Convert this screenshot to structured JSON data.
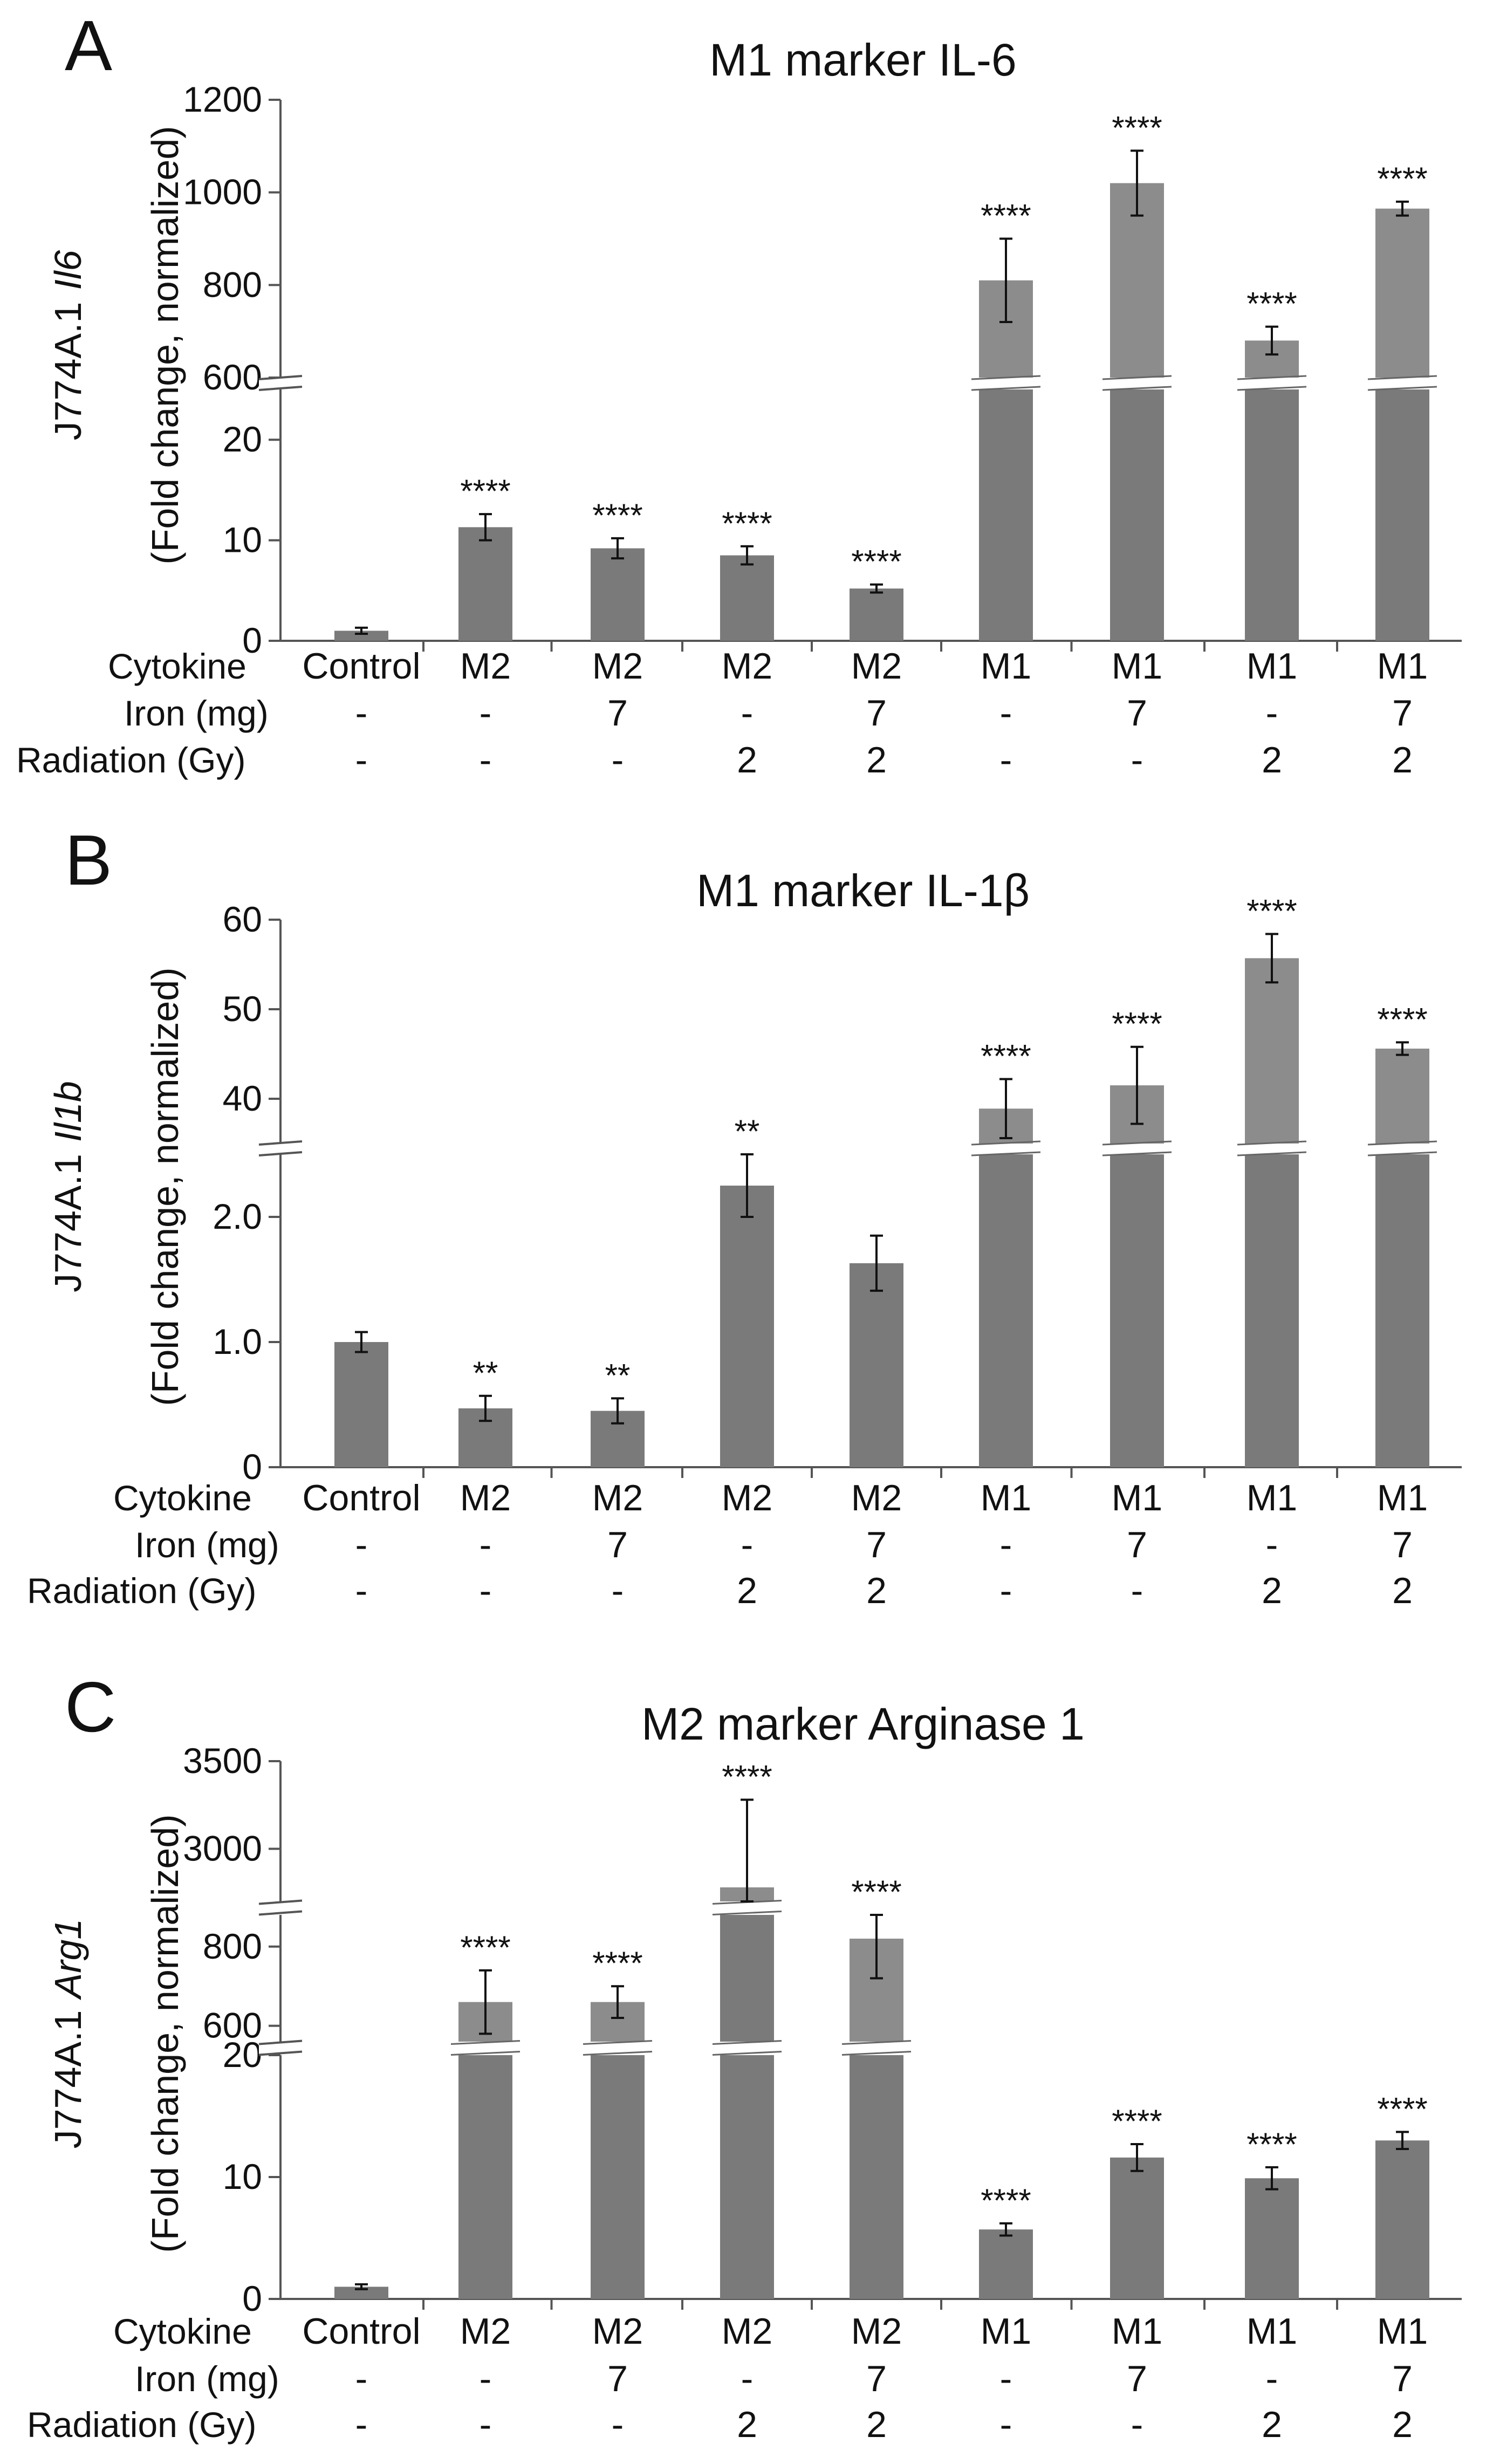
{
  "chart_data": [
    {
      "type": "bar",
      "panel": "A",
      "title": "M1 marker IL-6",
      "ylabel_main": "J774A.1",
      "ylabel_gene": "Il6",
      "ylabel_sub": "(Fold change, normalized)",
      "categories": [
        "Control",
        "M2",
        "M2",
        "M2",
        "M2",
        "M1",
        "M1",
        "M1",
        "M1"
      ],
      "values": [
        1.0,
        11.3,
        9.2,
        8.5,
        5.2,
        810,
        1020,
        680,
        965
      ],
      "errors": [
        0.3,
        1.3,
        1.0,
        0.9,
        0.4,
        90,
        70,
        30,
        15
      ],
      "significance": [
        "",
        "****",
        "****",
        "****",
        "****",
        "****",
        "****",
        "****",
        "****"
      ],
      "segments": [
        {
          "range": [
            0,
            25
          ],
          "ticks": [
            0,
            10,
            20
          ]
        },
        {
          "range": [
            600,
            1200
          ],
          "ticks": [
            600,
            800,
            1000,
            1200
          ]
        }
      ],
      "rows": [
        {
          "label": "Cytokine",
          "values": [
            "Control",
            "M2",
            "M2",
            "M2",
            "M2",
            "M1",
            "M1",
            "M1",
            "M1"
          ]
        },
        {
          "label": "Iron (mg)",
          "values": [
            "-",
            "-",
            "7",
            "-",
            "7",
            "-",
            "7",
            "-",
            "7"
          ]
        },
        {
          "label": "Radiation (Gy)",
          "values": [
            "-",
            "-",
            "-",
            "2",
            "2",
            "-",
            "-",
            "2",
            "2"
          ]
        }
      ]
    },
    {
      "type": "bar",
      "panel": "B",
      "title": "M1 marker IL-1β",
      "ylabel_main": "J774A.1",
      "ylabel_gene": "Il1b",
      "ylabel_sub": "(Fold change, normalized)",
      "categories": [
        "Control",
        "M2",
        "M2",
        "M2",
        "M2",
        "M1",
        "M1",
        "M1",
        "M1"
      ],
      "values": [
        1.0,
        0.47,
        0.45,
        2.25,
        1.63,
        38.9,
        41.5,
        55.7,
        45.6
      ],
      "errors": [
        0.08,
        0.1,
        0.1,
        0.25,
        0.22,
        3.3,
        4.3,
        2.7,
        0.7
      ],
      "significance": [
        "",
        "**",
        "**",
        "**",
        "",
        "****",
        "****",
        "****",
        "****"
      ],
      "segments": [
        {
          "range": [
            0,
            2.5
          ],
          "ticks": [
            0,
            1.0,
            2.0
          ],
          "tick_labels": [
            "0",
            "1.0",
            "2.0"
          ]
        },
        {
          "range": [
            35,
            60
          ],
          "ticks": [
            40,
            50,
            60
          ]
        }
      ],
      "rows": [
        {
          "label": "Cytokine",
          "values": [
            "Control",
            "M2",
            "M2",
            "M2",
            "M2",
            "M1",
            "M1",
            "M1",
            "M1"
          ]
        },
        {
          "label": "Iron (mg)",
          "values": [
            "-",
            "-",
            "7",
            "-",
            "7",
            "-",
            "7",
            "-",
            "7"
          ]
        },
        {
          "label": "Radiation (Gy)",
          "values": [
            "-",
            "-",
            "-",
            "2",
            "2",
            "-",
            "-",
            "2",
            "2"
          ]
        }
      ]
    },
    {
      "type": "bar",
      "panel": "C",
      "title": "M2 marker Arginase 1",
      "ylabel_main": "J774A.1",
      "ylabel_gene": "Arg1",
      "ylabel_sub": "(Fold change, normalized)",
      "categories": [
        "Control",
        "M2",
        "M2",
        "M2",
        "M2",
        "M1",
        "M1",
        "M1",
        "M1"
      ],
      "values": [
        1.0,
        660,
        660,
        2780,
        820,
        5.7,
        11.6,
        9.9,
        13.0
      ],
      "errors": [
        0.2,
        80,
        40,
        500,
        100,
        0.5,
        1.1,
        0.9,
        0.7
      ],
      "significance": [
        "",
        "****",
        "****",
        "****",
        "****",
        "****",
        "****",
        "****",
        "****"
      ],
      "segments": [
        {
          "range": [
            0,
            20
          ],
          "ticks": [
            0,
            10,
            20
          ]
        },
        {
          "range": [
            560,
            880
          ],
          "ticks": [
            600,
            800
          ]
        },
        {
          "range": [
            2700,
            3500
          ],
          "ticks": [
            3000,
            3500
          ]
        }
      ],
      "rows": [
        {
          "label": "Cytokine",
          "values": [
            "Control",
            "M2",
            "M2",
            "M2",
            "M2",
            "M1",
            "M1",
            "M1",
            "M1"
          ]
        },
        {
          "label": "Iron (mg)",
          "values": [
            "-",
            "-",
            "7",
            "-",
            "7",
            "-",
            "7",
            "-",
            "7"
          ]
        },
        {
          "label": "Radiation (Gy)",
          "values": [
            "-",
            "-",
            "-",
            "2",
            "2",
            "-",
            "-",
            "2",
            "2"
          ]
        }
      ]
    }
  ],
  "colors": {
    "bar_low": "#7a7a7a",
    "bar_high": "#8c8c8c",
    "axis": "#555555",
    "text": "#111111"
  }
}
